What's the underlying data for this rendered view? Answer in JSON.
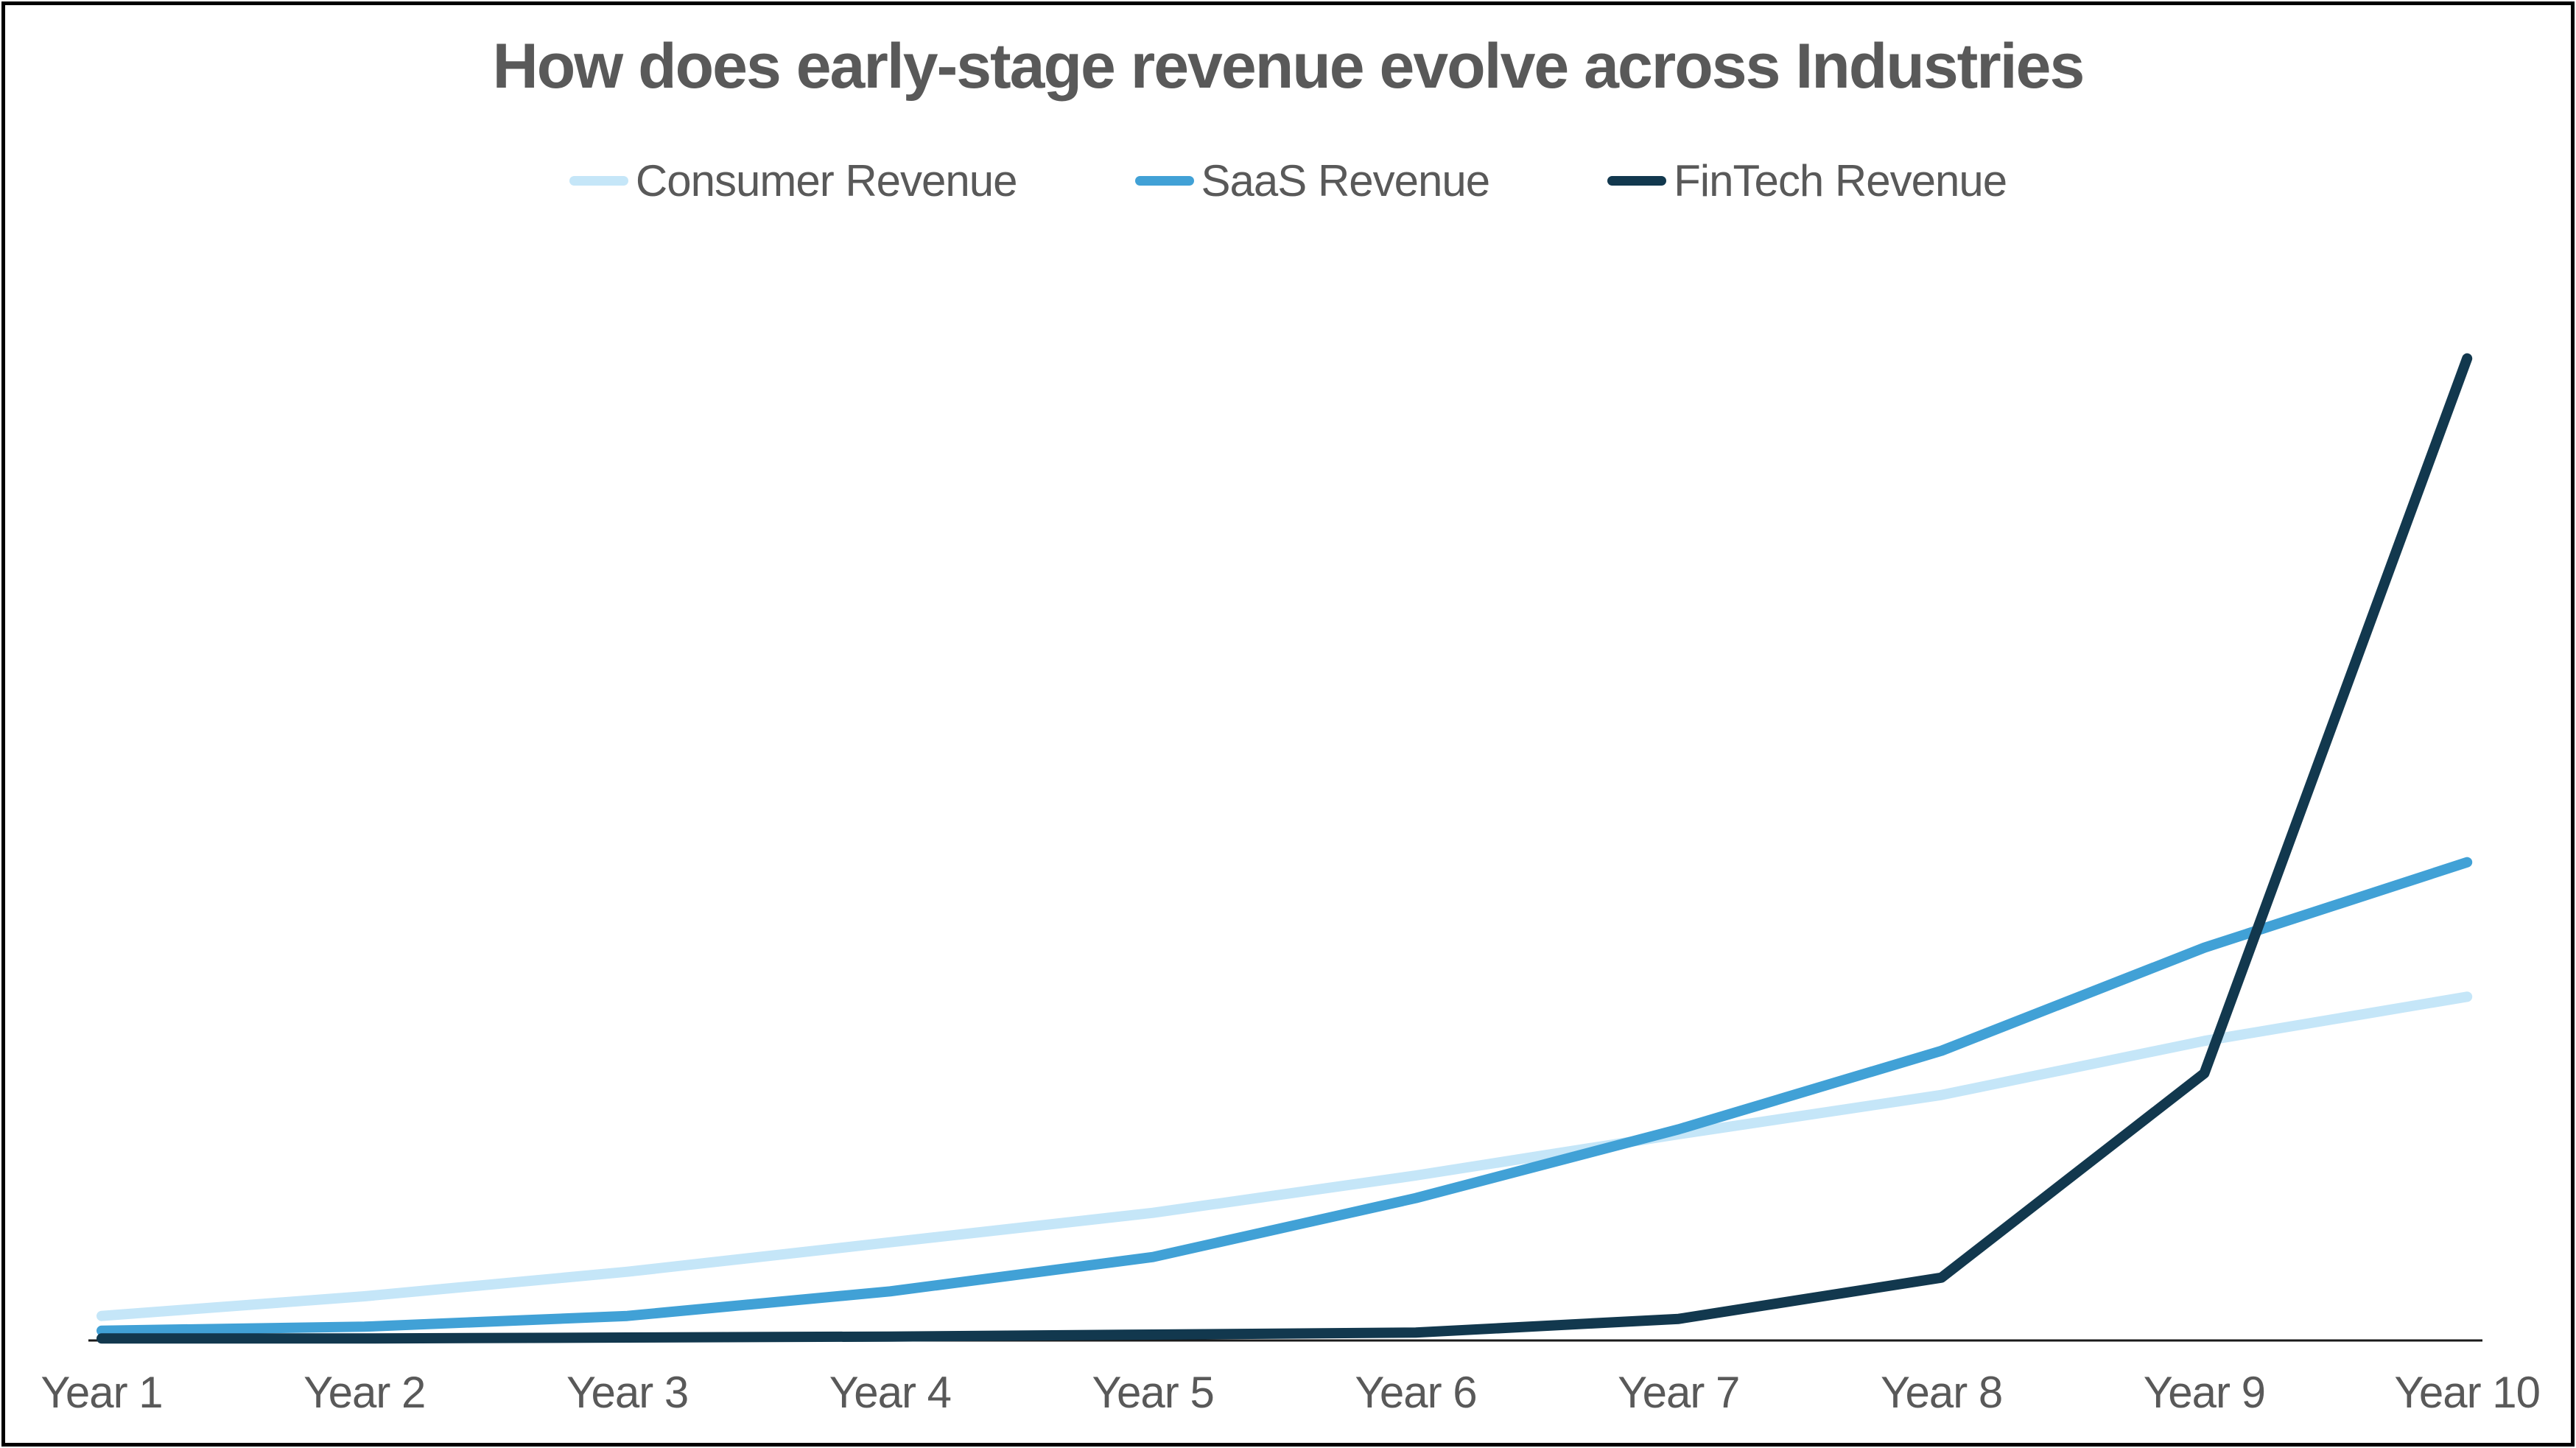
{
  "title": "How does early-stage revenue evolve across Industries",
  "colors": {
    "consumer": "#c5e6f8",
    "saas": "#41a1d6",
    "fintech": "#12384e",
    "text_gray": "#595959",
    "axis": "#1a1a1a",
    "border": "#000000"
  },
  "chart_data": {
    "type": "line",
    "title": "How does early-stage revenue evolve across Industries",
    "xlabel": "",
    "ylabel": "",
    "categories": [
      "Year 1",
      "Year 2",
      "Year 3",
      "Year 4",
      "Year 5",
      "Year 6",
      "Year 7",
      "Year 8",
      "Year 9",
      "Year 10"
    ],
    "series": [
      {
        "name": "Consumer Revenue",
        "color": "#c5e6f8",
        "values": [
          25,
          45,
          70,
          100,
          130,
          168,
          210,
          250,
          305,
          350
        ]
      },
      {
        "name": "SaaS Revenue",
        "color": "#41a1d6",
        "values": [
          10,
          14,
          25,
          50,
          85,
          145,
          215,
          295,
          400,
          487
        ]
      },
      {
        "name": "FinTech Revenue",
        "color": "#12384e",
        "values": [
          2,
          2,
          3,
          4,
          6,
          8,
          22,
          64,
          272,
          1000
        ]
      }
    ],
    "ylim": [
      0,
      1100
    ],
    "y_axis_visible": false,
    "x_axis_visible": true,
    "grid": false,
    "legend_position": "top"
  }
}
